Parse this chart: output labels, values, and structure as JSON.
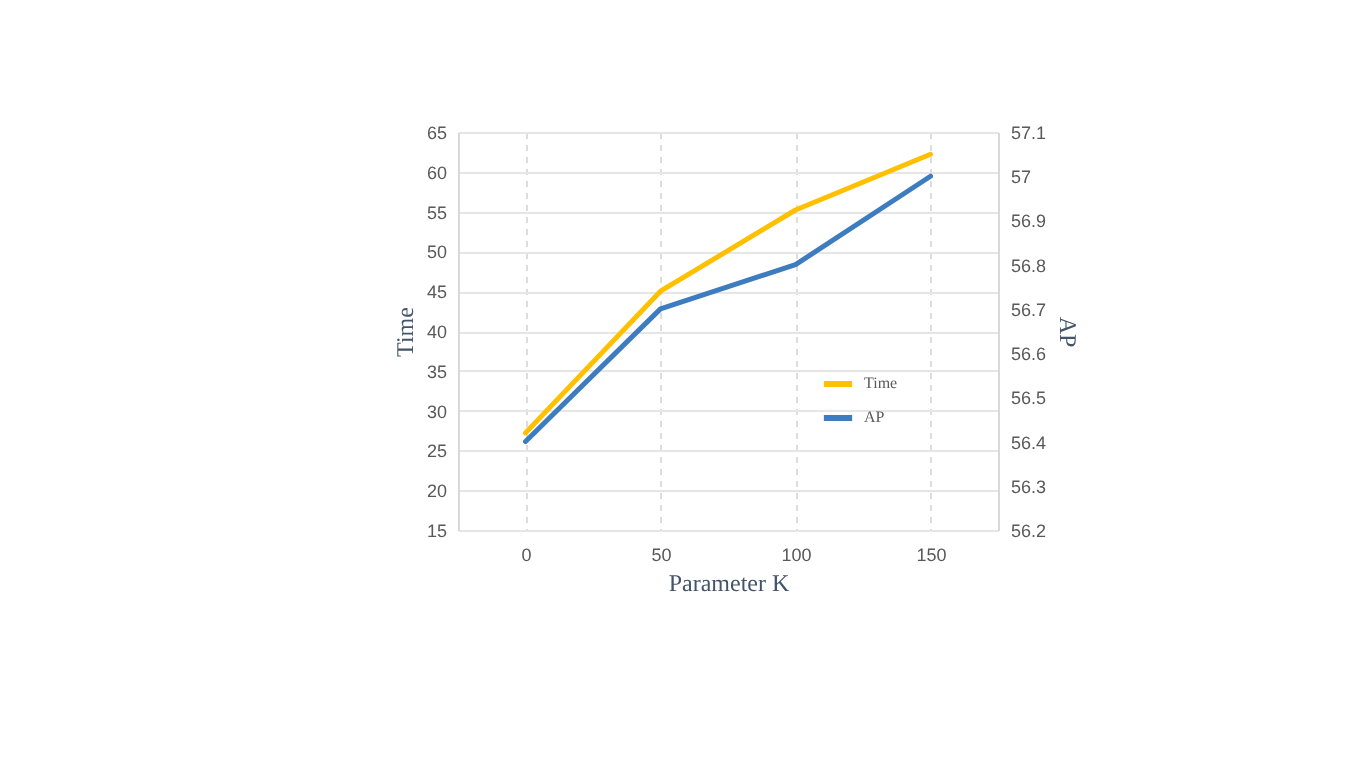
{
  "chart_data": {
    "type": "line",
    "xlabel": "Parameter K",
    "ylabel": "Time",
    "y2label": "AP",
    "x": [
      0,
      50,
      100,
      150
    ],
    "xlim": [
      -25,
      175
    ],
    "xticks": [
      0,
      50,
      100,
      150
    ],
    "ylim": [
      15,
      65
    ],
    "yticks": [
      15,
      20,
      25,
      30,
      35,
      40,
      45,
      50,
      55,
      60,
      65
    ],
    "y2lim": [
      56.2,
      57.1
    ],
    "y2ticks": [
      56.2,
      56.3,
      56.4,
      56.5,
      56.6,
      56.7,
      56.8,
      56.9,
      {
        "value": 57,
        "label": "57"
      },
      57.1
    ],
    "series": [
      {
        "name": "Time",
        "color": "#ffc000",
        "values": [
          27.2,
          45,
          55.2,
          62.2
        ]
      },
      {
        "name": "AP",
        "color": "#3e7cc0",
        "values": [
          56.4,
          56.7,
          56.8,
          57.0
        ],
        "axis": "y2"
      }
    ],
    "grid": true,
    "legend": "bottom right",
    "marker": "none",
    "line_style": "solid"
  }
}
